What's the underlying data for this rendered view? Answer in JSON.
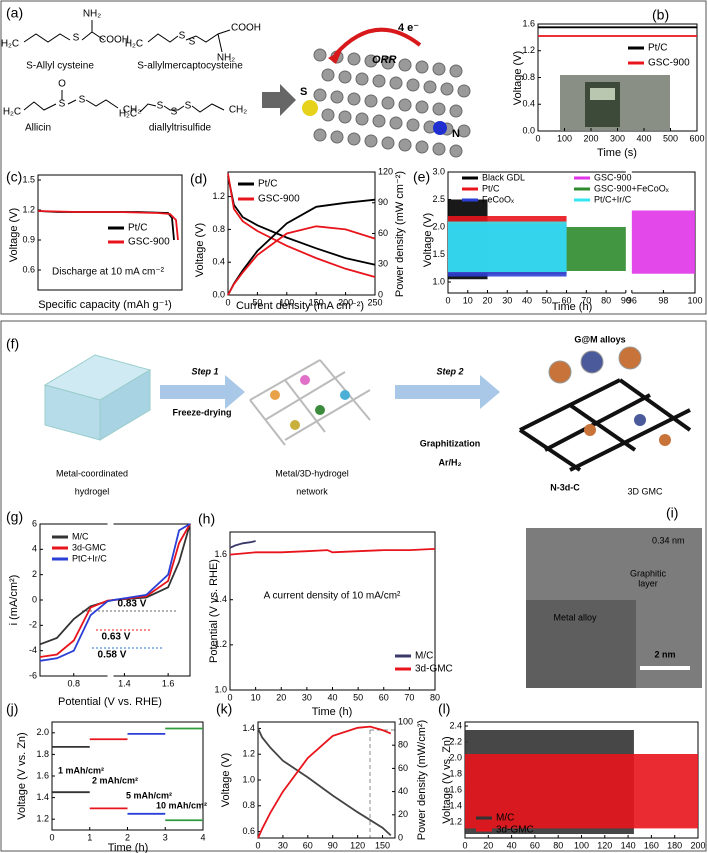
{
  "panel_a": {
    "label": "(a)",
    "molecules": [
      {
        "name": "S-Allyl cysteine",
        "fragments": [
          "H₂C",
          "S",
          "NH₂",
          "COOH"
        ]
      },
      {
        "name": "S-allylmercaptocysteine",
        "fragments": [
          "H₂C",
          "S",
          "S",
          "COOH",
          "NH₂"
        ]
      },
      {
        "name": "Allicin",
        "fragments": [
          "H₂C",
          "O",
          "S",
          "S",
          "CH₂"
        ]
      },
      {
        "name": "diallyltrisulfide",
        "fragments": [
          "H₂C",
          "S",
          "S",
          "S",
          "CH₂"
        ]
      }
    ],
    "model": {
      "electrons": "4 e⁻",
      "reaction": "ORR",
      "sulfur": "S",
      "nitrogen": "N"
    }
  },
  "panel_f": {
    "label": "(f)",
    "step1": "Step 1",
    "step1_process": "Freeze-drying",
    "step2": "Step 2",
    "step2_process": "Graphitization",
    "step2_gas": "Ar/H₂",
    "stage1": [
      "Metal-coordinated",
      "hydrogel"
    ],
    "stage2": [
      "Metal/3D-hydrogel",
      "network"
    ],
    "stage3": "3D GMC",
    "alloys": "G@M alloys",
    "carbon": "N-3d-C"
  },
  "panel_i": {
    "label": "(i)",
    "spacing": "0.34 nm",
    "layer": [
      "Graphitic",
      "layer"
    ],
    "alloy": "Metal alloy",
    "scale": "2 nm"
  },
  "chart_data": [
    {
      "label": "(b)",
      "type": "line",
      "xlabel": "Time (s)",
      "ylabel": "Voltage (V)",
      "xlim": [
        0,
        600
      ],
      "xticks": [
        0,
        100,
        200,
        300,
        400,
        500,
        600
      ],
      "ylim": [
        0,
        1.6
      ],
      "yticks": [
        {
          "value": 0,
          "label": "0.0"
        },
        0.4,
        0.8,
        1.2,
        1.6
      ],
      "legend": "right",
      "series": [
        {
          "name": "Pt/C",
          "color": "#000000",
          "x": [
            0,
            600
          ],
          "values": [
            1.55,
            1.55
          ]
        },
        {
          "name": "GSC-900",
          "color": "#e8141b",
          "x": [
            0,
            600
          ],
          "values": [
            1.42,
            1.42
          ]
        }
      ]
    },
    {
      "label": "(c)",
      "type": "line",
      "xlabel": "Specific capacity (mAh g⁻¹)",
      "ylabel": "Voltage (V)",
      "xlim": [
        0,
        720
      ],
      "ylim": [
        0.4,
        1.55
      ],
      "yticks": [
        0.6,
        0.9,
        1.2,
        1.5
      ],
      "legend": "right",
      "annotations": [
        {
          "text": "Discharge at 10 mA cm⁻²",
          "color": "#000000"
        }
      ],
      "series": [
        {
          "name": "Pt/C",
          "color": "#000000",
          "x": [
            0,
            100,
            300,
            500,
            650,
            670,
            680
          ],
          "values": [
            1.19,
            1.18,
            1.18,
            1.18,
            1.17,
            1.12,
            0.9
          ]
        },
        {
          "name": "GSC-900",
          "color": "#e8141b",
          "x": [
            0,
            200,
            400,
            600,
            660,
            690,
            700
          ],
          "values": [
            1.19,
            1.18,
            1.18,
            1.17,
            1.16,
            1.1,
            0.9
          ]
        }
      ]
    },
    {
      "label": "(d)",
      "type": "line",
      "xlabel": "Current density (mA cm⁻²)",
      "ylabel": "Voltage (V)",
      "y2label": "Power density (mW cm⁻²)",
      "xlim": [
        0,
        250
      ],
      "xticks": [
        0,
        50,
        100,
        150,
        200,
        250
      ],
      "ylim": [
        0,
        1.5
      ],
      "yticks": [
        {
          "value": 0,
          "label": "0.0"
        },
        0.4,
        0.8,
        1.2
      ],
      "y2lim": [
        0,
        120
      ],
      "y2ticks": [
        0,
        30,
        60,
        90,
        120
      ],
      "legend": "top-left",
      "series": [
        {
          "name": "Pt/C",
          "color": "#000000",
          "x": [
            0,
            10,
            25,
            50,
            100,
            150,
            200,
            250
          ],
          "values": [
            1.45,
            1.1,
            0.95,
            0.85,
            0.7,
            0.57,
            0.45,
            0.37
          ]
        },
        {
          "name": "GSC-900",
          "color": "#e8141b",
          "x": [
            0,
            10,
            25,
            50,
            100,
            150,
            200,
            250
          ],
          "values": [
            1.48,
            1.05,
            0.9,
            0.78,
            0.6,
            0.45,
            0.32,
            0.22
          ]
        },
        {
          "color": "#000000",
          "axis": "y2",
          "x": [
            0,
            10,
            25,
            50,
            100,
            150,
            200,
            250
          ],
          "values": [
            0,
            11,
            24,
            43,
            70,
            86,
            90,
            93
          ]
        },
        {
          "color": "#e8141b",
          "axis": "y2",
          "x": [
            0,
            10,
            25,
            50,
            100,
            150,
            200,
            250
          ],
          "values": [
            0,
            10.5,
            22,
            39,
            60,
            67,
            64,
            55
          ]
        }
      ]
    },
    {
      "label": "(e)",
      "type": "band",
      "band_style": "filled",
      "xlabel": "Time (h)",
      "ylabel": "Voltage (V)",
      "xlim": [
        0,
        100
      ],
      "xbreak": [
        90,
        96
      ],
      "xticks": [
        0,
        10,
        20,
        30,
        40,
        50,
        60,
        70,
        80,
        90,
        96,
        98,
        100
      ],
      "ylim": [
        0.8,
        3.0
      ],
      "yticks": [
        {
          "value": 1,
          "label": "1.0"
        },
        1.5,
        {
          "value": 2,
          "label": "2.0"
        },
        2.5,
        {
          "value": 3,
          "label": "3.0"
        }
      ],
      "legend": "top",
      "series": [
        {
          "name": "Black GDL",
          "color": "#000000",
          "x": [
            0,
            20
          ],
          "values": [
            1.05,
            2.5
          ]
        },
        {
          "name": "Pt/C",
          "color": "#e8141b",
          "x": [
            0,
            60
          ],
          "values": [
            1.15,
            2.2
          ]
        },
        {
          "name": "FeCoOₓ",
          "color": "#2a3fd6",
          "x": [
            0,
            60
          ],
          "values": [
            1.1,
            2.05
          ]
        },
        {
          "name": "GSC-900",
          "color": "#e035e8",
          "x": [
            96,
            100
          ],
          "values": [
            1.15,
            2.3
          ]
        },
        {
          "name": "GSC-900+FeCoOₓ",
          "color": "#2e8b2e",
          "x": [
            60,
            90
          ],
          "values": [
            1.2,
            2.0
          ]
        },
        {
          "name": "Pt/C+Ir/C",
          "color": "#33e6f0",
          "x": [
            0,
            60
          ],
          "values": [
            1.18,
            2.1
          ]
        }
      ]
    },
    {
      "label": "(g)",
      "type": "line",
      "xlabel": "Potential (V vs. RHE)",
      "ylabel": "i (mA/cm²)",
      "xlim": [
        0.6,
        1.7
      ],
      "xbreak": [
        1.0,
        1.35
      ],
      "xticks": [
        0.8,
        1.4,
        1.6
      ],
      "ylim": [
        -6,
        6
      ],
      "yticks": [
        -6,
        -4,
        -2,
        0,
        2,
        4,
        6
      ],
      "legend": "top-left",
      "annotations": [
        {
          "text": "0.83 V",
          "color": "#666666"
        },
        {
          "text": "0.63 V",
          "color": "#e8141b"
        },
        {
          "text": "0.58 V",
          "color": "#2a6fd6"
        }
      ],
      "series": [
        {
          "name": "M/C",
          "color": "#333333",
          "x": [
            0.6,
            0.7,
            0.8,
            0.9,
            1.0,
            1.35,
            1.5,
            1.6,
            1.65,
            1.7
          ],
          "values": [
            -3.5,
            -3.0,
            -1.5,
            -0.5,
            -0.1,
            0,
            0.2,
            1.0,
            3.0,
            6
          ]
        },
        {
          "name": "3d-GMC",
          "color": "#e8141b",
          "x": [
            0.6,
            0.7,
            0.8,
            0.9,
            1.0,
            1.35,
            1.5,
            1.6,
            1.65,
            1.7
          ],
          "values": [
            -4.5,
            -4.3,
            -3.2,
            -0.6,
            -0.05,
            0,
            0.3,
            1.5,
            4.5,
            6
          ]
        },
        {
          "name": "PtC+Ir/C",
          "color": "#2a3fd6",
          "x": [
            0.6,
            0.7,
            0.8,
            0.9,
            1.0,
            1.35,
            1.5,
            1.6,
            1.65,
            1.7
          ],
          "values": [
            -4.8,
            -4.6,
            -4.0,
            -1.2,
            -0.1,
            0,
            0.4,
            2.0,
            5.5,
            6
          ]
        }
      ]
    },
    {
      "label": "(h)",
      "type": "line",
      "xlabel": "Time (h)",
      "ylabel": "Potential (V vs. RHE)",
      "xlim": [
        0,
        80
      ],
      "xticks": [
        0,
        10,
        20,
        30,
        40,
        50,
        60,
        70,
        80
      ],
      "ylim": [
        1.0,
        1.7
      ],
      "yticks": [
        {
          "value": 1,
          "label": "1.0"
        },
        1.2,
        1.4,
        1.6
      ],
      "legend": "bottom-right",
      "annotations": [
        {
          "text": "A current density of 10 mA/cm²",
          "color": "#000000"
        }
      ],
      "series": [
        {
          "name": "M/C",
          "color": "#3a3a6a",
          "x": [
            0,
            2,
            5,
            8,
            10
          ],
          "values": [
            1.63,
            1.64,
            1.65,
            1.655,
            1.66
          ]
        },
        {
          "name": "3d-GMC",
          "color": "#e8141b",
          "x": [
            0,
            10,
            20,
            30,
            38,
            40,
            50,
            60,
            70,
            80
          ],
          "values": [
            1.6,
            1.61,
            1.61,
            1.615,
            1.62,
            1.61,
            1.615,
            1.62,
            1.62,
            1.625
          ]
        }
      ]
    },
    {
      "label": "(j)",
      "type": "band",
      "band_style": "lines",
      "xlabel": "Time (h)",
      "ylabel": "Voltage (V vs. Zn)",
      "xlim": [
        0,
        4
      ],
      "xticks": [
        0,
        1,
        2,
        3,
        4
      ],
      "ylim": [
        1.1,
        2.1
      ],
      "yticks": [
        1.2,
        1.4,
        1.6,
        1.8,
        {
          "value": 2,
          "label": "2.0"
        }
      ],
      "legend": "inline",
      "series": [
        {
          "name": "1 mAh/cm²",
          "color": "#333333",
          "x": [
            0,
            1
          ],
          "values": [
            1.45,
            1.87
          ]
        },
        {
          "name": "2 mAh/cm²",
          "color": "#e8141b",
          "x": [
            1,
            2
          ],
          "values": [
            1.3,
            1.94
          ]
        },
        {
          "name": "5 mAh/cm²",
          "color": "#2a3fd6",
          "x": [
            2,
            3
          ],
          "values": [
            1.25,
            1.99
          ]
        },
        {
          "name": "10 mAh/cm²",
          "color": "#2e9b3e",
          "x": [
            3,
            4
          ],
          "values": [
            1.19,
            2.04
          ]
        }
      ]
    },
    {
      "label": "(k)",
      "type": "line",
      "ylabel": "Voltage (V)",
      "y2label": "Power density (mW/cm²)",
      "xlim": [
        0,
        165
      ],
      "xticks": [
        0,
        30,
        60,
        90,
        120,
        150
      ],
      "ylim": [
        0.55,
        1.45
      ],
      "yticks": [
        0.6,
        0.8,
        {
          "value": 1,
          "label": "1.0"
        },
        1.2,
        1.4
      ],
      "y2lim": [
        0,
        100
      ],
      "y2ticks": [
        0,
        20,
        40,
        60,
        80,
        100
      ],
      "y2color": "#e8141b",
      "series": [
        {
          "color": "#444444",
          "x": [
            0,
            5,
            15,
            30,
            60,
            90,
            120,
            150,
            160
          ],
          "values": [
            1.4,
            1.33,
            1.25,
            1.15,
            1.02,
            0.88,
            0.75,
            0.63,
            0.57
          ]
        },
        {
          "color": "#e8141b",
          "axis": "y2",
          "x": [
            0,
            5,
            15,
            30,
            60,
            90,
            120,
            135,
            150,
            160
          ],
          "values": [
            0,
            8,
            22,
            40,
            69,
            88,
            95,
            96,
            93,
            90
          ]
        }
      ]
    },
    {
      "label": "(l)",
      "type": "band",
      "band_style": "filled",
      "ylabel": "Voltage (V vs. Zn)",
      "xlim": [
        0,
        200
      ],
      "xticks": [
        0,
        20,
        40,
        60,
        80,
        100,
        120,
        140,
        160,
        180,
        200
      ],
      "ylim": [
        1.0,
        2.45
      ],
      "yticks": [
        1.2,
        1.4,
        1.6,
        1.8,
        {
          "value": 2,
          "label": "2.0"
        },
        2.2,
        2.4
      ],
      "legend": "bottom-left",
      "series": [
        {
          "name": "M/C",
          "color": "#333333",
          "x": [
            0,
            145
          ],
          "values": [
            1.05,
            2.35
          ]
        },
        {
          "name": "3d-GMC",
          "color": "#e8141b",
          "x": [
            0,
            200
          ],
          "values": [
            1.12,
            2.05
          ]
        }
      ]
    }
  ]
}
